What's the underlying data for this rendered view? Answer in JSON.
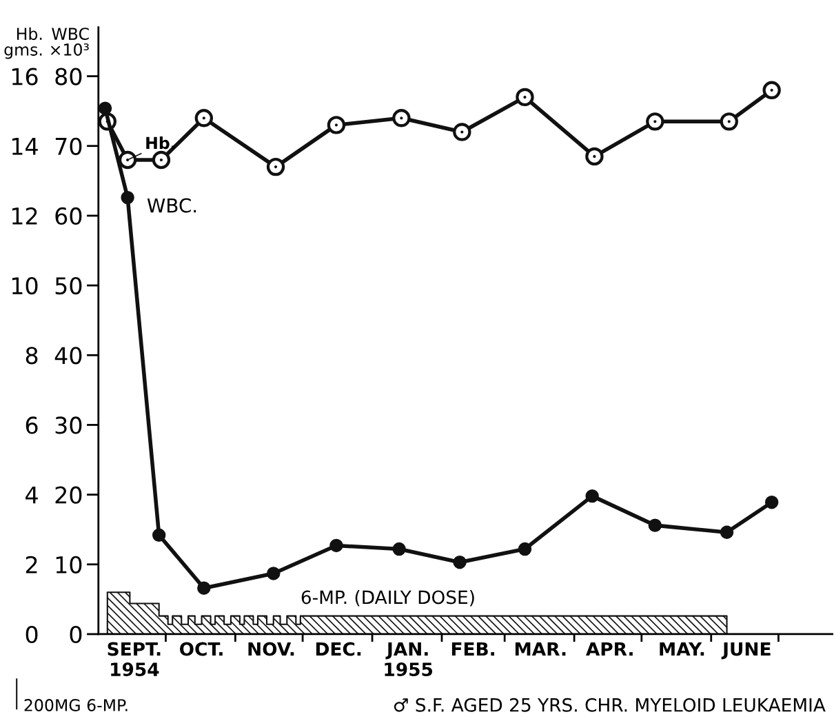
{
  "chart_data": {
    "type": "line",
    "ylabel": "WBC\n×10³",
    "y2label": "Hb.\ngms.",
    "xlim": [
      "1954-09-01",
      "1955-07-25"
    ],
    "xticks": [
      {
        "value": "1954-10-01",
        "label": null
      },
      {
        "value": "1954-11-01",
        "label": null
      },
      {
        "value": "1954-12-01",
        "label": null
      },
      {
        "value": "1955-01-01",
        "label": null
      },
      {
        "value": "1955-02-01",
        "label": null
      },
      {
        "value": "1955-03-01",
        "label": null
      },
      {
        "value": "1955-04-01",
        "label": null
      },
      {
        "value": "1955-05-01",
        "label": null
      },
      {
        "value": "1955-06-01",
        "label": null
      },
      {
        "value": "1955-07-01",
        "label": null
      },
      {
        "value": "1954-09-17",
        "label": "SEPT.\n1954"
      },
      {
        "value": "1954-10-17",
        "label": "OCT."
      },
      {
        "value": "1954-11-17",
        "label": "NOV."
      },
      {
        "value": "1954-12-17",
        "label": "DEC."
      },
      {
        "value": "1955-01-17",
        "label": "JAN.\n1955"
      },
      {
        "value": "1955-02-15",
        "label": "FEB."
      },
      {
        "value": "1955-03-17",
        "label": "MAR."
      },
      {
        "value": "1955-04-17",
        "label": "APR."
      },
      {
        "value": "1955-05-19",
        "label": "MAY."
      },
      {
        "value": "1955-06-17",
        "label": "JUNE"
      }
    ],
    "ylim": [
      0,
      87
    ],
    "yticks": [
      0,
      10,
      20,
      30,
      40,
      50,
      60,
      70,
      80
    ],
    "y2lim": [
      0,
      17.4
    ],
    "y2ticks": [
      0,
      2,
      4,
      6,
      8,
      10,
      12,
      14,
      16
    ],
    "grid": false,
    "legend": false,
    "marker": "circle",
    "line_style": "solid",
    "series": [
      {
        "name": "Hb.",
        "axis": "y2",
        "color": "#111111",
        "x": [
          "1954-09-05",
          "1954-09-14",
          "1954-09-29",
          "1954-10-18",
          "1954-11-19",
          "1954-12-16",
          "1955-01-14",
          "1955-02-10",
          "1955-03-10",
          "1955-04-10",
          "1955-05-07",
          "1955-06-09",
          "1955-06-28"
        ],
        "values": [
          14.7,
          13.6,
          13.6,
          14.8,
          13.4,
          14.6,
          14.8,
          14.4,
          15.4,
          13.7,
          14.7,
          14.7,
          15.6
        ]
      },
      {
        "name": "WBC.",
        "color": "#111111",
        "x": [
          "1954-09-04",
          "1954-09-14",
          "1954-09-28",
          "1954-10-18",
          "1954-11-18",
          "1954-12-16",
          "1955-01-13",
          "1955-02-09",
          "1955-03-10",
          "1955-04-09",
          "1955-05-07",
          "1955-06-08",
          "1955-06-28"
        ],
        "values": [
          75.4,
          62.6,
          14.2,
          6.6,
          8.7,
          12.7,
          12.2,
          10.3,
          12.2,
          19.8,
          15.6,
          14.6,
          18.9
        ]
      },
      {
        "name": "6-MP. (DAILY DOSE)",
        "type": "area",
        "marker": "none",
        "color": "#111111",
        "x": [
          "1954-09-05",
          "1954-09-15",
          "1954-09-28",
          "1954-10-02",
          "1954-10-04",
          "1954-10-08",
          "1954-10-11",
          "1954-10-14",
          "1954-10-17",
          "1954-10-21",
          "1954-10-23",
          "1954-10-27",
          "1954-10-30",
          "1954-11-03",
          "1954-11-05",
          "1954-11-09",
          "1954-11-11",
          "1954-11-15",
          "1954-11-18",
          "1954-11-21",
          "1954-11-24",
          "1954-11-28",
          "1954-11-30",
          "1955-06-08"
        ],
        "values": [
          6.0,
          4.4,
          2.6,
          1.4,
          2.6,
          1.4,
          2.6,
          1.4,
          2.6,
          1.4,
          2.6,
          1.4,
          2.6,
          1.4,
          2.6,
          1.4,
          2.6,
          1.4,
          2.6,
          1.4,
          2.6,
          1.4,
          2.6,
          0
        ]
      }
    ],
    "annotations": [
      "200MG 6-MP.",
      "♂ S.F. AGED 25 YRS. CHR. MYELOID LEUKAEMIA"
    ]
  }
}
